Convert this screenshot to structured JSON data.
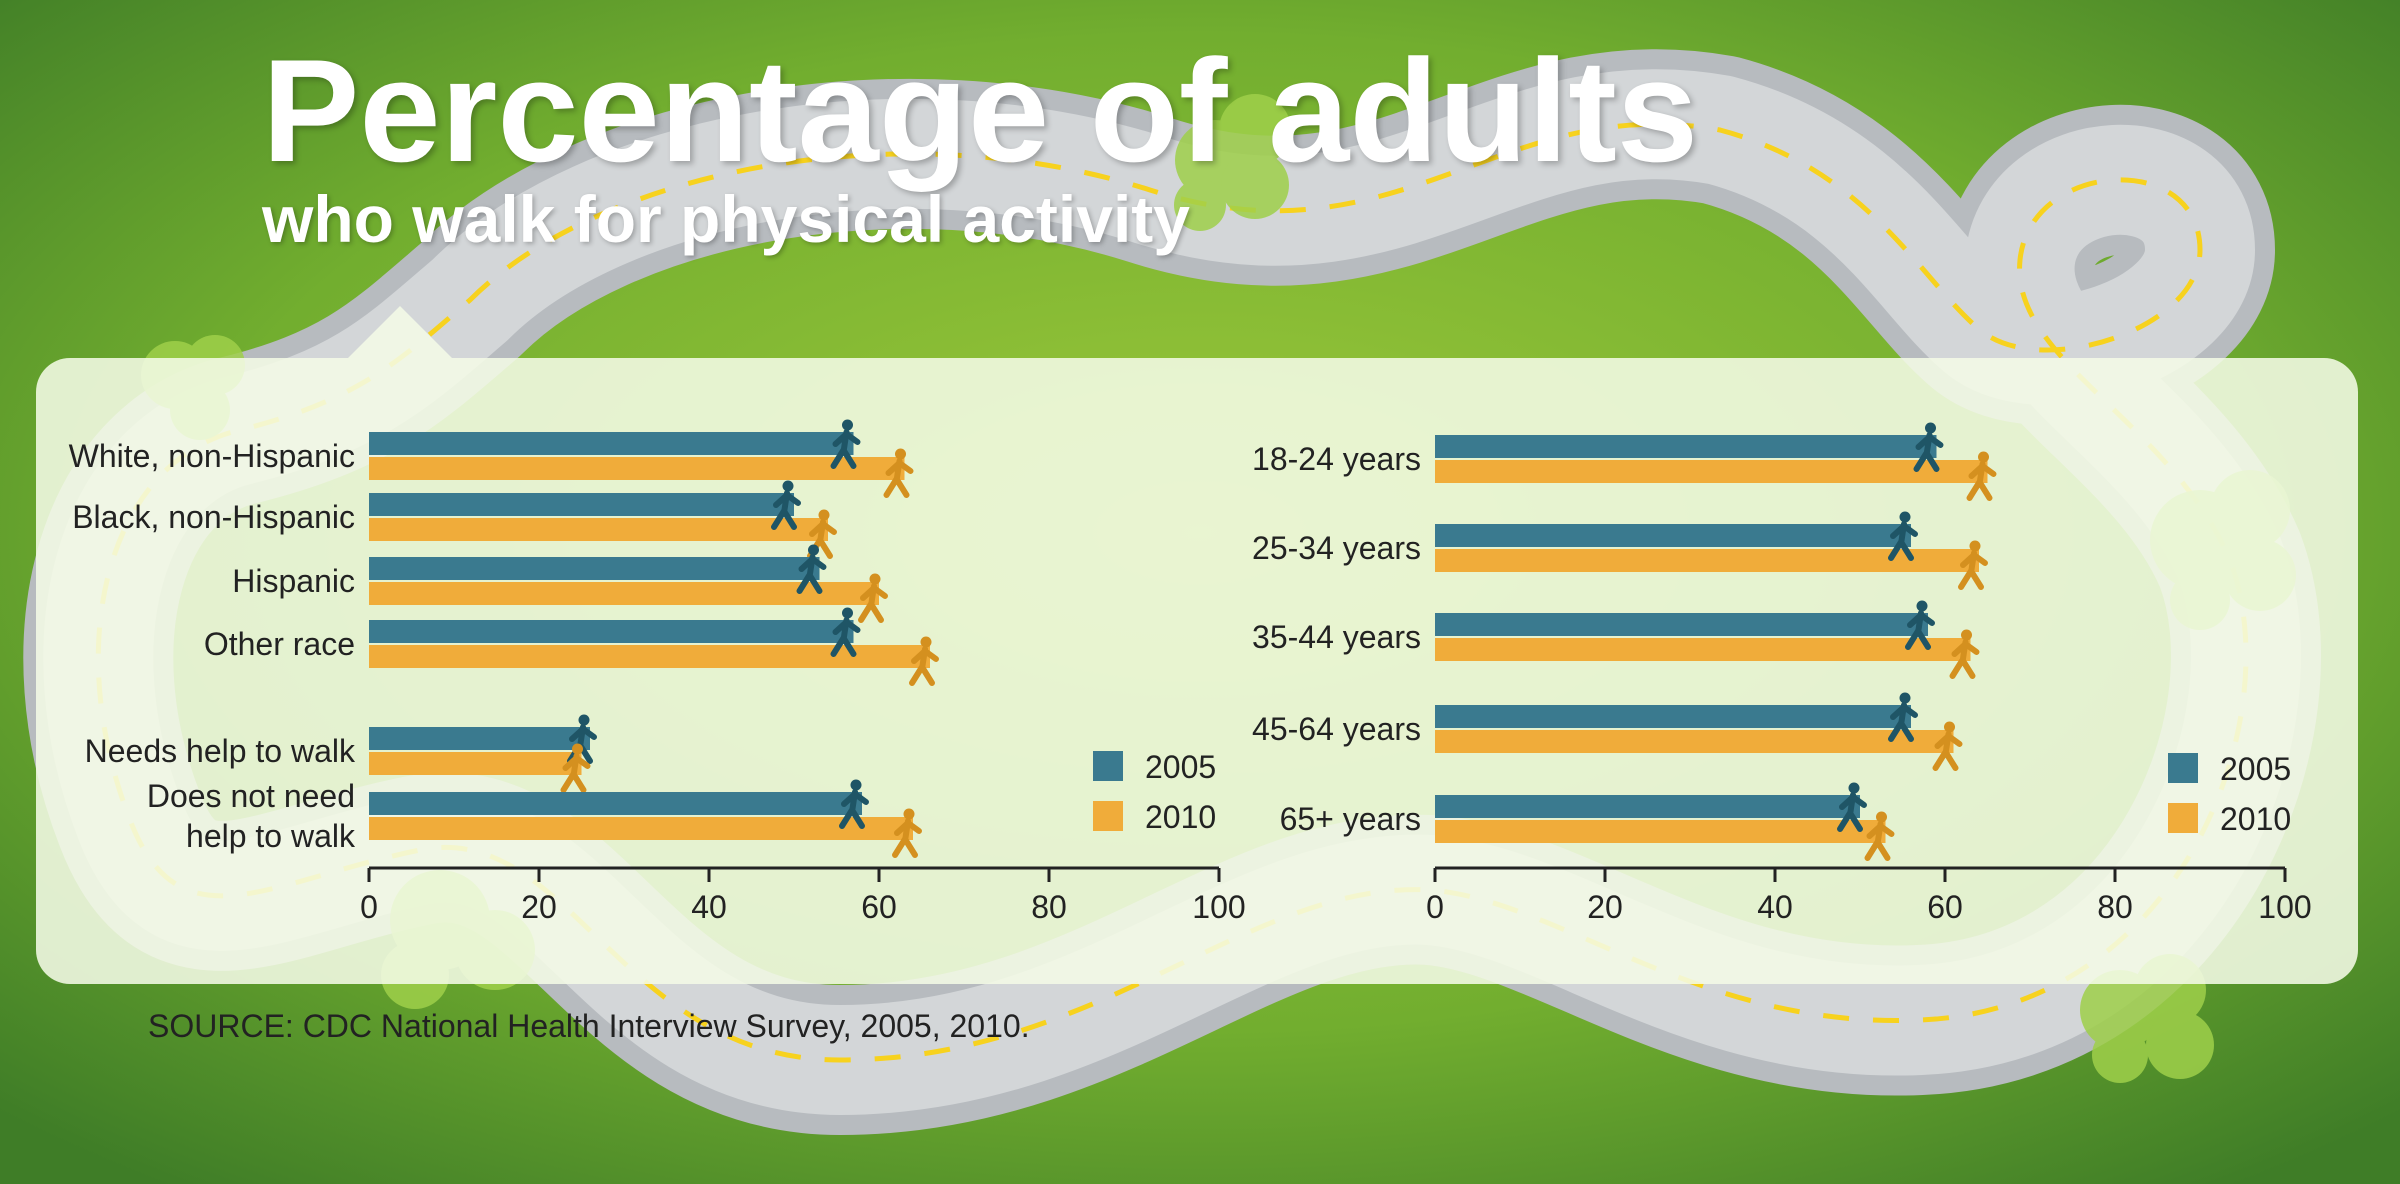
{
  "title": "Percentage of adults",
  "subtitle": "who walk for physical activity",
  "source": "SOURCE: CDC National Health Interview Survey, 2005, 2010.",
  "colors": {
    "series_2005": "#3a7a8f",
    "series_2010": "#f0ac3a",
    "walker_2005": "#1f5566",
    "walker_2010": "#d4901f",
    "axis": "#222222",
    "text": "#222222",
    "background_green": "#6aa830",
    "road": "#c2c6c9",
    "road_dash": "#f7d21e"
  },
  "chart_data": [
    {
      "type": "bar",
      "orientation": "horizontal",
      "categories": [
        "White, non-Hispanic",
        "Black, non-Hispanic",
        "Hispanic",
        "Other race",
        "Needs help to walk",
        "Does not need help to walk"
      ],
      "category_lines": [
        [
          "White, non-Hispanic"
        ],
        [
          "Black, non-Hispanic"
        ],
        [
          "Hispanic"
        ],
        [
          "Other race"
        ],
        [
          "Needs help to walk"
        ],
        [
          "Does not need",
          "help to walk"
        ]
      ],
      "series": [
        {
          "name": "2005",
          "values": [
            57,
            50,
            53,
            57,
            26,
            58
          ]
        },
        {
          "name": "2010",
          "values": [
            63,
            54,
            60,
            66,
            25,
            64
          ]
        }
      ],
      "xlim": [
        0,
        100
      ],
      "xticks": [
        "0",
        "20",
        "40",
        "60",
        "80",
        "100"
      ],
      "legend": [
        "2005",
        "2010"
      ],
      "legend_position": "bottom-right",
      "marker": "walking figure at end of each bar",
      "grid": false
    },
    {
      "type": "bar",
      "orientation": "horizontal",
      "categories": [
        "18-24 years",
        "25-34 years",
        "35-44 years",
        "45-64 years",
        "65+ years"
      ],
      "category_lines": [
        [
          "18-24 years"
        ],
        [
          "25-34 years"
        ],
        [
          "35-44 years"
        ],
        [
          "45-64 years"
        ],
        [
          "65+ years"
        ]
      ],
      "series": [
        {
          "name": "2005",
          "values": [
            59,
            56,
            58,
            56,
            50
          ]
        },
        {
          "name": "2010",
          "values": [
            65,
            64,
            63,
            61,
            53
          ]
        }
      ],
      "xlim": [
        0,
        100
      ],
      "xticks": [
        "0",
        "20",
        "40",
        "60",
        "80",
        "100"
      ],
      "legend": [
        "2005",
        "2010"
      ],
      "legend_position": "bottom-right",
      "marker": "walking figure at end of each bar",
      "grid": false
    }
  ]
}
